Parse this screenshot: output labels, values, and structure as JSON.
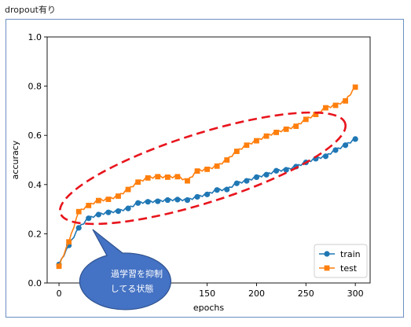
{
  "caption": "dropout有り",
  "callout_lines": [
    "過学習を抑制",
    "してる状態"
  ],
  "chart_data": {
    "type": "line",
    "title": "",
    "xlabel": "epochs",
    "ylabel": "accuracy",
    "xlim": [
      -12,
      315
    ],
    "ylim": [
      0.0,
      1.0
    ],
    "xticks": [
      0,
      50,
      100,
      150,
      200,
      250,
      300
    ],
    "yticks": [
      0.0,
      0.2,
      0.4,
      0.6,
      0.8,
      1.0
    ],
    "grid": false,
    "legend_position": "lower right",
    "marker_every": 10,
    "series": [
      {
        "name": "train",
        "color": "#1f77b4",
        "marker": "circle",
        "x": [
          0,
          10,
          20,
          30,
          40,
          50,
          60,
          70,
          80,
          90,
          100,
          110,
          120,
          130,
          140,
          150,
          160,
          170,
          180,
          190,
          200,
          210,
          220,
          230,
          240,
          250,
          260,
          270,
          280,
          290,
          300
        ],
        "y": [
          0.075,
          0.153,
          0.224,
          0.263,
          0.278,
          0.287,
          0.292,
          0.303,
          0.325,
          0.33,
          0.332,
          0.337,
          0.339,
          0.337,
          0.35,
          0.36,
          0.378,
          0.38,
          0.405,
          0.415,
          0.43,
          0.44,
          0.456,
          0.46,
          0.473,
          0.49,
          0.505,
          0.515,
          0.54,
          0.56,
          0.585
        ]
      },
      {
        "name": "test",
        "color": "#ff7f0e",
        "marker": "square",
        "x": [
          0,
          10,
          20,
          30,
          40,
          50,
          60,
          70,
          80,
          90,
          100,
          110,
          120,
          130,
          140,
          150,
          160,
          170,
          180,
          190,
          200,
          210,
          220,
          230,
          240,
          250,
          260,
          270,
          280,
          290,
          300
        ],
        "y": [
          0.068,
          0.167,
          0.29,
          0.315,
          0.335,
          0.34,
          0.353,
          0.38,
          0.41,
          0.427,
          0.432,
          0.43,
          0.432,
          0.415,
          0.455,
          0.462,
          0.475,
          0.5,
          0.535,
          0.56,
          0.578,
          0.597,
          0.612,
          0.625,
          0.637,
          0.665,
          0.685,
          0.712,
          0.722,
          0.74,
          0.796
        ]
      }
    ]
  }
}
